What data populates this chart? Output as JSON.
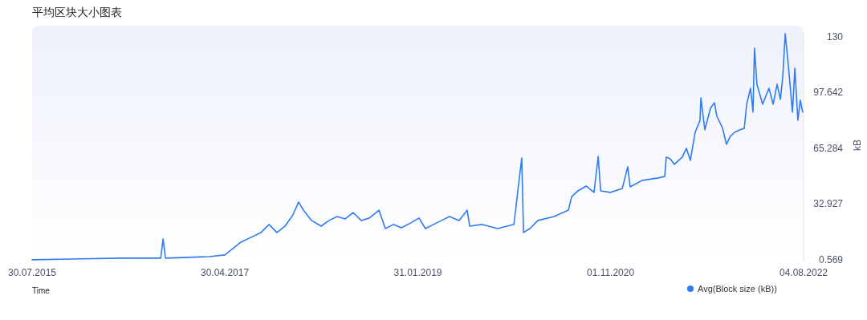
{
  "chart_data": {
    "type": "line",
    "title": "平均区块大小图表",
    "xlabel": "Time",
    "ylabel": "kB",
    "legend": "bottom right",
    "xlim": [
      "2015-07-30",
      "2022-08-04"
    ],
    "xticks": [
      {
        "value": "2015-07-30",
        "label": "30.07.2015"
      },
      {
        "value": "2017-04-30",
        "label": "30.04.2017"
      },
      {
        "value": "2019-01-31",
        "label": "31.01.2019"
      },
      {
        "value": "2020-11-01",
        "label": "01.11.2020"
      },
      {
        "value": "2022-08-04",
        "label": "04.08.2022"
      }
    ],
    "ylim": [
      -0.4,
      132.8
    ],
    "yticks": [
      0.569,
      32.927,
      65.284,
      97.642,
      130
    ],
    "x": [
      "2015-07-30",
      "2015-12-10",
      "2016-05-18",
      "2016-09-29",
      "2016-10-07",
      "2016-10-15",
      "2017-03-08",
      "2017-04-30",
      "2017-05-27",
      "2017-06-22",
      "2017-08-01",
      "2017-08-28",
      "2017-09-24",
      "2017-10-20",
      "2017-11-16",
      "2017-12-12",
      "2017-12-31",
      "2018-01-16",
      "2018-02-12",
      "2018-03-16",
      "2018-04-11",
      "2018-05-08",
      "2018-06-04",
      "2018-06-30",
      "2018-07-27",
      "2018-08-23",
      "2018-09-24",
      "2018-10-15",
      "2018-11-11",
      "2018-12-07",
      "2019-01-08",
      "2019-02-04",
      "2019-02-25",
      "2019-03-24",
      "2019-04-20",
      "2019-05-16",
      "2019-06-17",
      "2019-07-14",
      "2019-07-22",
      "2019-08-31",
      "2019-10-23",
      "2019-12-16",
      "2020-01-11",
      "2020-01-17",
      "2020-02-07",
      "2020-03-05",
      "2020-04-27",
      "2020-06-14",
      "2020-06-25",
      "2020-07-16",
      "2020-08-12",
      "2020-09-07",
      "2020-09-21",
      "2020-09-29",
      "2020-10-31",
      "2020-12-10",
      "2020-12-28",
      "2021-01-05",
      "2021-02-14",
      "2021-04-08",
      "2021-04-30",
      "2021-05-05",
      "2021-05-18",
      "2021-06-01",
      "2021-06-27",
      "2021-07-11",
      "2021-07-24",
      "2021-08-09",
      "2021-08-25",
      "2021-08-28",
      "2021-09-10",
      "2021-09-29",
      "2021-10-12",
      "2021-10-20",
      "2021-11-08",
      "2021-11-21",
      "2021-12-04",
      "2021-12-18",
      "2022-01-05",
      "2022-01-19",
      "2022-01-27",
      "2022-02-09",
      "2022-02-17",
      "2022-02-22",
      "2022-03-02",
      "2022-03-21",
      "2022-04-11",
      "2022-04-25",
      "2022-05-08",
      "2022-05-19",
      "2022-05-27",
      "2022-06-04",
      "2022-06-14",
      "2022-06-28",
      "2022-07-06",
      "2022-07-16",
      "2022-07-24",
      "2022-08-01"
    ],
    "series": [
      {
        "name": "Avg(Block size (kB))",
        "color": "#2f7bf0",
        "values": [
          0.6,
          1.0,
          1.5,
          1.5,
          12.7,
          1.5,
          2.4,
          3.4,
          7.1,
          10.8,
          14.1,
          16.4,
          21.1,
          16.4,
          20.1,
          26.6,
          34.1,
          29.4,
          23.4,
          20.1,
          23.4,
          25.7,
          24.3,
          28.0,
          23.4,
          24.8,
          29.4,
          18.7,
          21.1,
          19.2,
          22.0,
          24.8,
          18.7,
          21.1,
          23.4,
          25.7,
          23.4,
          29.4,
          20.1,
          21.1,
          18.7,
          21.1,
          59.7,
          16.4,
          18.7,
          23.4,
          25.7,
          29.4,
          37.3,
          40.6,
          43.4,
          39.7,
          60.6,
          40.6,
          39.7,
          42.0,
          54.6,
          42.9,
          46.7,
          48.1,
          49.0,
          60.2,
          59.2,
          56.0,
          60.2,
          65.3,
          58.3,
          74.6,
          81.6,
          94.6,
          76.1,
          88.7,
          91.8,
          84.0,
          76.9,
          67.6,
          72.3,
          74.6,
          76.1,
          76.9,
          90.9,
          100.2,
          86.3,
          123.5,
          102.5,
          90.9,
          100.2,
          90.9,
          102.5,
          93.7,
          107.2,
          131.9,
          114.2,
          86.3,
          111.8,
          81.6,
          93.2,
          86.3
        ]
      }
    ]
  }
}
